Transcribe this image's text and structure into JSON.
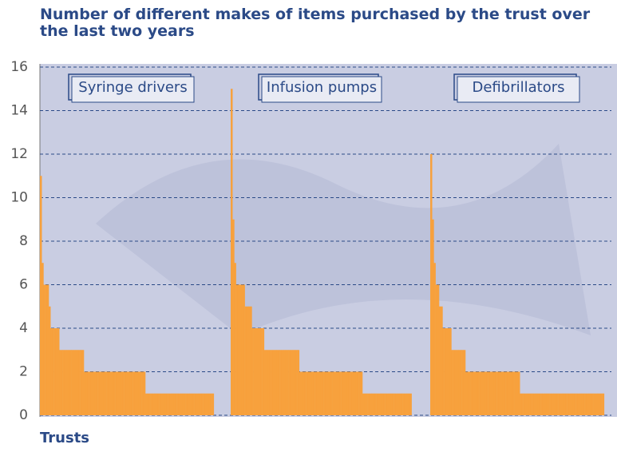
{
  "chart_data": {
    "type": "bar",
    "title": "Number of different makes of items purchased by the trust over the last two years",
    "x_label": "Trusts",
    "ylim": [
      0,
      16
    ],
    "yticks": [
      0,
      2,
      4,
      6,
      8,
      10,
      12,
      14,
      16
    ],
    "grid": true,
    "color": "#f7a13d",
    "groups": [
      {
        "name": "Syringe drivers",
        "values": [
          11,
          7,
          6,
          6,
          6,
          5,
          4,
          4,
          4,
          4,
          4,
          3,
          3,
          3,
          3,
          3,
          3,
          3,
          3,
          3,
          3,
          3,
          3,
          3,
          3,
          2,
          2,
          2,
          2,
          2,
          2,
          2,
          2,
          2,
          2,
          2,
          2,
          2,
          2,
          2,
          2,
          2,
          2,
          2,
          2,
          2,
          2,
          2,
          2,
          2,
          2,
          2,
          2,
          2,
          2,
          2,
          2,
          2,
          2,
          2,
          1,
          1,
          1,
          1,
          1,
          1,
          1,
          1,
          1,
          1,
          1,
          1,
          1,
          1,
          1,
          1,
          1,
          1,
          1,
          1,
          1,
          1,
          1,
          1,
          1,
          1,
          1,
          1,
          1,
          1,
          1,
          1,
          1,
          1,
          1,
          1,
          1,
          1,
          1
        ]
      },
      {
        "name": "Infusion pumps",
        "values": [
          15,
          9,
          7,
          6,
          6,
          6,
          6,
          6,
          5,
          5,
          5,
          5,
          4,
          4,
          4,
          4,
          4,
          4,
          4,
          3,
          3,
          3,
          3,
          3,
          3,
          3,
          3,
          3,
          3,
          3,
          3,
          3,
          3,
          3,
          3,
          3,
          3,
          3,
          3,
          2,
          2,
          2,
          2,
          2,
          2,
          2,
          2,
          2,
          2,
          2,
          2,
          2,
          2,
          2,
          2,
          2,
          2,
          2,
          2,
          2,
          2,
          2,
          2,
          2,
          2,
          2,
          2,
          2,
          2,
          2,
          2,
          2,
          2,
          2,
          2,
          1,
          1,
          1,
          1,
          1,
          1,
          1,
          1,
          1,
          1,
          1,
          1,
          1,
          1,
          1,
          1,
          1,
          1,
          1,
          1,
          1,
          1,
          1,
          1,
          1,
          1,
          1,
          1
        ]
      },
      {
        "name": "Defibrillators",
        "values": [
          12,
          9,
          7,
          6,
          6,
          5,
          5,
          4,
          4,
          4,
          4,
          4,
          3,
          3,
          3,
          3,
          3,
          3,
          3,
          3,
          2,
          2,
          2,
          2,
          2,
          2,
          2,
          2,
          2,
          2,
          2,
          2,
          2,
          2,
          2,
          2,
          2,
          2,
          2,
          2,
          2,
          2,
          2,
          2,
          2,
          2,
          2,
          2,
          2,
          2,
          2,
          1,
          1,
          1,
          1,
          1,
          1,
          1,
          1,
          1,
          1,
          1,
          1,
          1,
          1,
          1,
          1,
          1,
          1,
          1,
          1,
          1,
          1,
          1,
          1,
          1,
          1,
          1,
          1,
          1,
          1,
          1,
          1,
          1,
          1,
          1,
          1,
          1,
          1,
          1,
          1,
          1,
          1,
          1,
          1,
          1,
          1,
          1,
          1
        ]
      }
    ]
  }
}
